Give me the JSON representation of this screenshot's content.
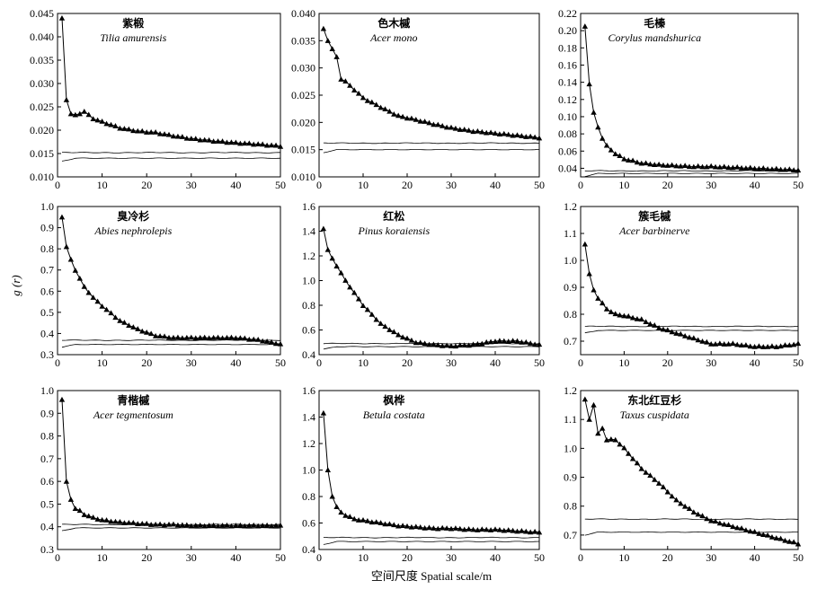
{
  "figure": {
    "ylabel": "g (r)",
    "xlabel": "空间尺度 Spatial scale/m"
  },
  "chart_data": [
    {
      "type": "line",
      "title_cn": "紫椴",
      "title_latin": "Tilia amurensis",
      "xlim": [
        0,
        50
      ],
      "xticks": [
        0,
        10,
        20,
        30,
        40,
        50
      ],
      "ylim": [
        0.01,
        0.045
      ],
      "yticks": [
        0.01,
        0.015,
        0.02,
        0.025,
        0.03,
        0.035,
        0.04,
        0.045
      ],
      "yticklabels": [
        "0.010",
        "0.015",
        "0.020",
        "0.025",
        "0.030",
        "0.035",
        "0.040",
        "0.045"
      ],
      "observed_shape": [
        [
          1,
          0.044
        ],
        [
          2,
          0.0265
        ],
        [
          3,
          0.0235
        ],
        [
          4,
          0.0232
        ],
        [
          5,
          0.0236
        ],
        [
          6,
          0.024
        ],
        [
          8,
          0.0225
        ],
        [
          10,
          0.0218
        ],
        [
          14,
          0.0205
        ],
        [
          18,
          0.0198
        ],
        [
          22,
          0.0195
        ],
        [
          26,
          0.0188
        ],
        [
          30,
          0.0182
        ],
        [
          35,
          0.0177
        ],
        [
          40,
          0.0173
        ],
        [
          45,
          0.017
        ],
        [
          50,
          0.0166
        ]
      ],
      "envelope_upper": 0.0152,
      "envelope_lower": 0.014
    },
    {
      "type": "line",
      "title_cn": "色木槭",
      "title_latin": "Acer mono",
      "xlim": [
        0,
        50
      ],
      "xticks": [
        0,
        10,
        20,
        30,
        40,
        50
      ],
      "ylim": [
        0.01,
        0.04
      ],
      "yticks": [
        0.01,
        0.015,
        0.02,
        0.025,
        0.03,
        0.035,
        0.04
      ],
      "yticklabels": [
        "0.010",
        "0.015",
        "0.020",
        "0.025",
        "0.030",
        "0.035",
        "0.040"
      ],
      "observed_shape": [
        [
          1,
          0.0372
        ],
        [
          2,
          0.035
        ],
        [
          3,
          0.0335
        ],
        [
          4,
          0.032
        ],
        [
          5,
          0.028
        ],
        [
          6,
          0.0275
        ],
        [
          8,
          0.026
        ],
        [
          10,
          0.0245
        ],
        [
          14,
          0.0228
        ],
        [
          18,
          0.0212
        ],
        [
          22,
          0.0205
        ],
        [
          26,
          0.0197
        ],
        [
          30,
          0.019
        ],
        [
          35,
          0.0184
        ],
        [
          40,
          0.018
        ],
        [
          45,
          0.0176
        ],
        [
          50,
          0.0172
        ]
      ],
      "envelope_upper": 0.0162,
      "envelope_lower": 0.015
    },
    {
      "type": "line",
      "title_cn": "毛榛",
      "title_latin": "Corylus mandshurica",
      "xlim": [
        0,
        50
      ],
      "xticks": [
        0,
        10,
        20,
        30,
        40,
        50
      ],
      "ylim": [
        0.03,
        0.22
      ],
      "yticks": [
        0.04,
        0.06,
        0.08,
        0.1,
        0.12,
        0.14,
        0.16,
        0.18,
        0.2,
        0.22
      ],
      "yticklabels": [
        "0.04",
        "0.06",
        "0.08",
        "0.10",
        "0.12",
        "0.14",
        "0.16",
        "0.18",
        "0.20",
        "0.22"
      ],
      "observed_shape": [
        [
          1,
          0.205
        ],
        [
          2,
          0.138
        ],
        [
          3,
          0.105
        ],
        [
          4,
          0.088
        ],
        [
          5,
          0.075
        ],
        [
          6,
          0.066
        ],
        [
          8,
          0.057
        ],
        [
          10,
          0.051
        ],
        [
          14,
          0.046
        ],
        [
          18,
          0.044
        ],
        [
          22,
          0.043
        ],
        [
          26,
          0.042
        ],
        [
          30,
          0.042
        ],
        [
          35,
          0.041
        ],
        [
          40,
          0.04
        ],
        [
          45,
          0.039
        ],
        [
          50,
          0.038
        ]
      ],
      "envelope_upper": 0.037,
      "envelope_lower": 0.034
    },
    {
      "type": "line",
      "title_cn": "臭冷杉",
      "title_latin": "Abies nephrolepis",
      "xlim": [
        0,
        50
      ],
      "xticks": [
        0,
        10,
        20,
        30,
        40,
        50
      ],
      "ylim": [
        0.3,
        1.0
      ],
      "yticks": [
        0.3,
        0.4,
        0.5,
        0.6,
        0.7,
        0.8,
        0.9,
        1.0
      ],
      "yticklabels": [
        "0.3",
        "0.4",
        "0.5",
        "0.6",
        "0.7",
        "0.8",
        "0.9",
        "1.0"
      ],
      "observed_shape": [
        [
          1,
          0.95
        ],
        [
          2,
          0.81
        ],
        [
          3,
          0.75
        ],
        [
          4,
          0.7
        ],
        [
          5,
          0.66
        ],
        [
          6,
          0.62
        ],
        [
          8,
          0.57
        ],
        [
          10,
          0.53
        ],
        [
          14,
          0.46
        ],
        [
          18,
          0.42
        ],
        [
          22,
          0.39
        ],
        [
          26,
          0.38
        ],
        [
          30,
          0.38
        ],
        [
          35,
          0.38
        ],
        [
          40,
          0.38
        ],
        [
          45,
          0.37
        ],
        [
          50,
          0.35
        ]
      ],
      "envelope_upper": 0.368,
      "envelope_lower": 0.348
    },
    {
      "type": "line",
      "title_cn": "红松",
      "title_latin": "Pinus koraiensis",
      "xlim": [
        0,
        50
      ],
      "xticks": [
        0,
        10,
        20,
        30,
        40,
        50
      ],
      "ylim": [
        0.4,
        1.6
      ],
      "yticks": [
        0.4,
        0.6,
        0.8,
        1.0,
        1.2,
        1.4,
        1.6
      ],
      "yticklabels": [
        "0.4",
        "0.6",
        "0.8",
        "1.0",
        "1.2",
        "1.4",
        "1.6"
      ],
      "observed_shape": [
        [
          1,
          1.42
        ],
        [
          2,
          1.25
        ],
        [
          3,
          1.18
        ],
        [
          4,
          1.12
        ],
        [
          5,
          1.06
        ],
        [
          6,
          1.0
        ],
        [
          8,
          0.9
        ],
        [
          10,
          0.8
        ],
        [
          14,
          0.65
        ],
        [
          18,
          0.56
        ],
        [
          22,
          0.5
        ],
        [
          26,
          0.48
        ],
        [
          30,
          0.47
        ],
        [
          35,
          0.48
        ],
        [
          40,
          0.51
        ],
        [
          45,
          0.51
        ],
        [
          50,
          0.48
        ]
      ],
      "envelope_upper": 0.49,
      "envelope_lower": 0.465
    },
    {
      "type": "line",
      "title_cn": "簇毛槭",
      "title_latin": "Acer barbinerve",
      "xlim": [
        0,
        50
      ],
      "xticks": [
        0,
        10,
        20,
        30,
        40,
        50
      ],
      "ylim": [
        0.65,
        1.2
      ],
      "yticks": [
        0.7,
        0.8,
        0.9,
        1.0,
        1.1,
        1.2
      ],
      "yticklabels": [
        "0.7",
        "0.8",
        "0.9",
        "1.0",
        "1.1",
        "1.2"
      ],
      "observed_shape": [
        [
          1,
          1.06
        ],
        [
          2,
          0.95
        ],
        [
          3,
          0.89
        ],
        [
          4,
          0.86
        ],
        [
          5,
          0.84
        ],
        [
          6,
          0.82
        ],
        [
          8,
          0.8
        ],
        [
          10,
          0.795
        ],
        [
          14,
          0.78
        ],
        [
          18,
          0.75
        ],
        [
          22,
          0.73
        ],
        [
          26,
          0.71
        ],
        [
          30,
          0.69
        ],
        [
          35,
          0.69
        ],
        [
          40,
          0.68
        ],
        [
          45,
          0.68
        ],
        [
          50,
          0.69
        ]
      ],
      "envelope_upper": 0.755,
      "envelope_lower": 0.74
    },
    {
      "type": "line",
      "title_cn": "青楷槭",
      "title_latin": "Acer tegmentosum",
      "xlim": [
        0,
        50
      ],
      "xticks": [
        0,
        10,
        20,
        30,
        40,
        50
      ],
      "ylim": [
        0.3,
        1.0
      ],
      "yticks": [
        0.3,
        0.4,
        0.5,
        0.6,
        0.7,
        0.8,
        0.9,
        1.0
      ],
      "yticklabels": [
        "0.3",
        "0.4",
        "0.5",
        "0.6",
        "0.7",
        "0.8",
        "0.9",
        "1.0"
      ],
      "observed_shape": [
        [
          1,
          0.96
        ],
        [
          2,
          0.6
        ],
        [
          3,
          0.52
        ],
        [
          4,
          0.48
        ],
        [
          5,
          0.47
        ],
        [
          6,
          0.455
        ],
        [
          8,
          0.44
        ],
        [
          10,
          0.43
        ],
        [
          14,
          0.42
        ],
        [
          18,
          0.415
        ],
        [
          22,
          0.41
        ],
        [
          26,
          0.41
        ],
        [
          30,
          0.405
        ],
        [
          35,
          0.405
        ],
        [
          40,
          0.405
        ],
        [
          45,
          0.405
        ],
        [
          50,
          0.405
        ]
      ],
      "envelope_upper": 0.41,
      "envelope_lower": 0.395
    },
    {
      "type": "line",
      "title_cn": "枫桦",
      "title_latin": "Betula costata",
      "xlim": [
        0,
        50
      ],
      "xticks": [
        0,
        10,
        20,
        30,
        40,
        50
      ],
      "ylim": [
        0.4,
        1.6
      ],
      "yticks": [
        0.4,
        0.6,
        0.8,
        1.0,
        1.2,
        1.4,
        1.6
      ],
      "yticklabels": [
        "0.4",
        "0.6",
        "0.8",
        "1.0",
        "1.2",
        "1.4",
        "1.6"
      ],
      "observed_shape": [
        [
          1,
          1.43
        ],
        [
          2,
          1.0
        ],
        [
          3,
          0.8
        ],
        [
          4,
          0.72
        ],
        [
          5,
          0.68
        ],
        [
          6,
          0.66
        ],
        [
          8,
          0.63
        ],
        [
          10,
          0.62
        ],
        [
          14,
          0.6
        ],
        [
          18,
          0.58
        ],
        [
          22,
          0.57
        ],
        [
          26,
          0.56
        ],
        [
          30,
          0.56
        ],
        [
          35,
          0.55
        ],
        [
          40,
          0.55
        ],
        [
          45,
          0.54
        ],
        [
          50,
          0.53
        ]
      ],
      "envelope_upper": 0.49,
      "envelope_lower": 0.46
    },
    {
      "type": "line",
      "title_cn": "东北红豆杉",
      "title_latin": "Taxus cuspidata",
      "xlim": [
        0,
        50
      ],
      "xticks": [
        0,
        10,
        20,
        30,
        40,
        50
      ],
      "ylim": [
        0.65,
        1.2
      ],
      "yticks": [
        0.7,
        0.8,
        0.9,
        1.0,
        1.1,
        1.2
      ],
      "yticklabels": [
        "0.7",
        "0.8",
        "0.9",
        "1.0",
        "1.1",
        "1.2"
      ],
      "observed_shape": [
        [
          1,
          1.17
        ],
        [
          2,
          1.1
        ],
        [
          3,
          1.15
        ],
        [
          4,
          1.05
        ],
        [
          5,
          1.07
        ],
        [
          6,
          1.03
        ],
        [
          8,
          1.03
        ],
        [
          10,
          1.0
        ],
        [
          14,
          0.93
        ],
        [
          18,
          0.88
        ],
        [
          22,
          0.82
        ],
        [
          26,
          0.78
        ],
        [
          30,
          0.75
        ],
        [
          35,
          0.73
        ],
        [
          40,
          0.71
        ],
        [
          45,
          0.69
        ],
        [
          50,
          0.67
        ]
      ],
      "envelope_upper": 0.755,
      "envelope_lower": 0.71
    }
  ]
}
